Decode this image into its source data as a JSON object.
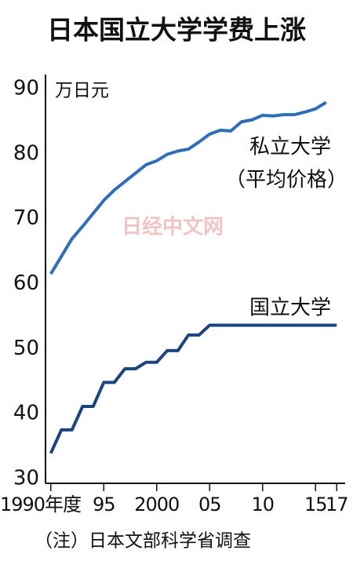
{
  "chart_data": {
    "type": "line",
    "title": "日本国立大学学费上涨",
    "y_label": "万日元",
    "note": "（注）日本文部科学省调查",
    "watermark": "日经中文网",
    "x": [
      1990,
      1991,
      1992,
      1993,
      1994,
      1995,
      1996,
      1997,
      1998,
      1999,
      2000,
      2001,
      2002,
      2003,
      2004,
      2005,
      2006,
      2007,
      2008,
      2009,
      2010,
      2011,
      2012,
      2013,
      2014,
      2015,
      2016,
      2017
    ],
    "series": [
      {
        "name": "私立大学",
        "subname": "（平均价格）",
        "color": "#2f6fb8",
        "values": [
          61.5,
          64.2,
          66.9,
          68.8,
          70.8,
          72.8,
          74.4,
          75.7,
          77.0,
          78.3,
          78.9,
          79.9,
          80.4,
          80.7,
          81.8,
          83.0,
          83.6,
          83.5,
          84.9,
          85.2,
          85.9,
          85.8,
          86.0,
          86.0,
          86.4,
          86.9,
          87.9,
          null
        ]
      },
      {
        "name": "国立大学",
        "color": "#1b4480",
        "values": [
          33.9,
          37.5,
          37.5,
          41.1,
          41.1,
          44.8,
          44.8,
          46.9,
          46.9,
          47.9,
          47.9,
          49.7,
          49.7,
          52.1,
          52.1,
          53.6,
          53.6,
          53.6,
          53.6,
          53.6,
          53.6,
          53.6,
          53.6,
          53.6,
          53.6,
          53.6,
          53.6,
          53.6
        ]
      }
    ],
    "xlim": [
      1989.5,
      2017.5
    ],
    "xticks": [
      {
        "value": 1990,
        "label": "1990年度"
      },
      {
        "value": 1995,
        "label": "95"
      },
      2000,
      {
        "value": 2005,
        "label": "05"
      },
      {
        "value": 2010,
        "label": "10"
      },
      {
        "value": 2015,
        "label": "15"
      },
      {
        "value": 2017,
        "label": "17"
      }
    ],
    "ylim": [
      30,
      90
    ],
    "yticks": [
      30,
      40,
      50,
      60,
      70,
      80,
      90
    ],
    "grid": false
  }
}
